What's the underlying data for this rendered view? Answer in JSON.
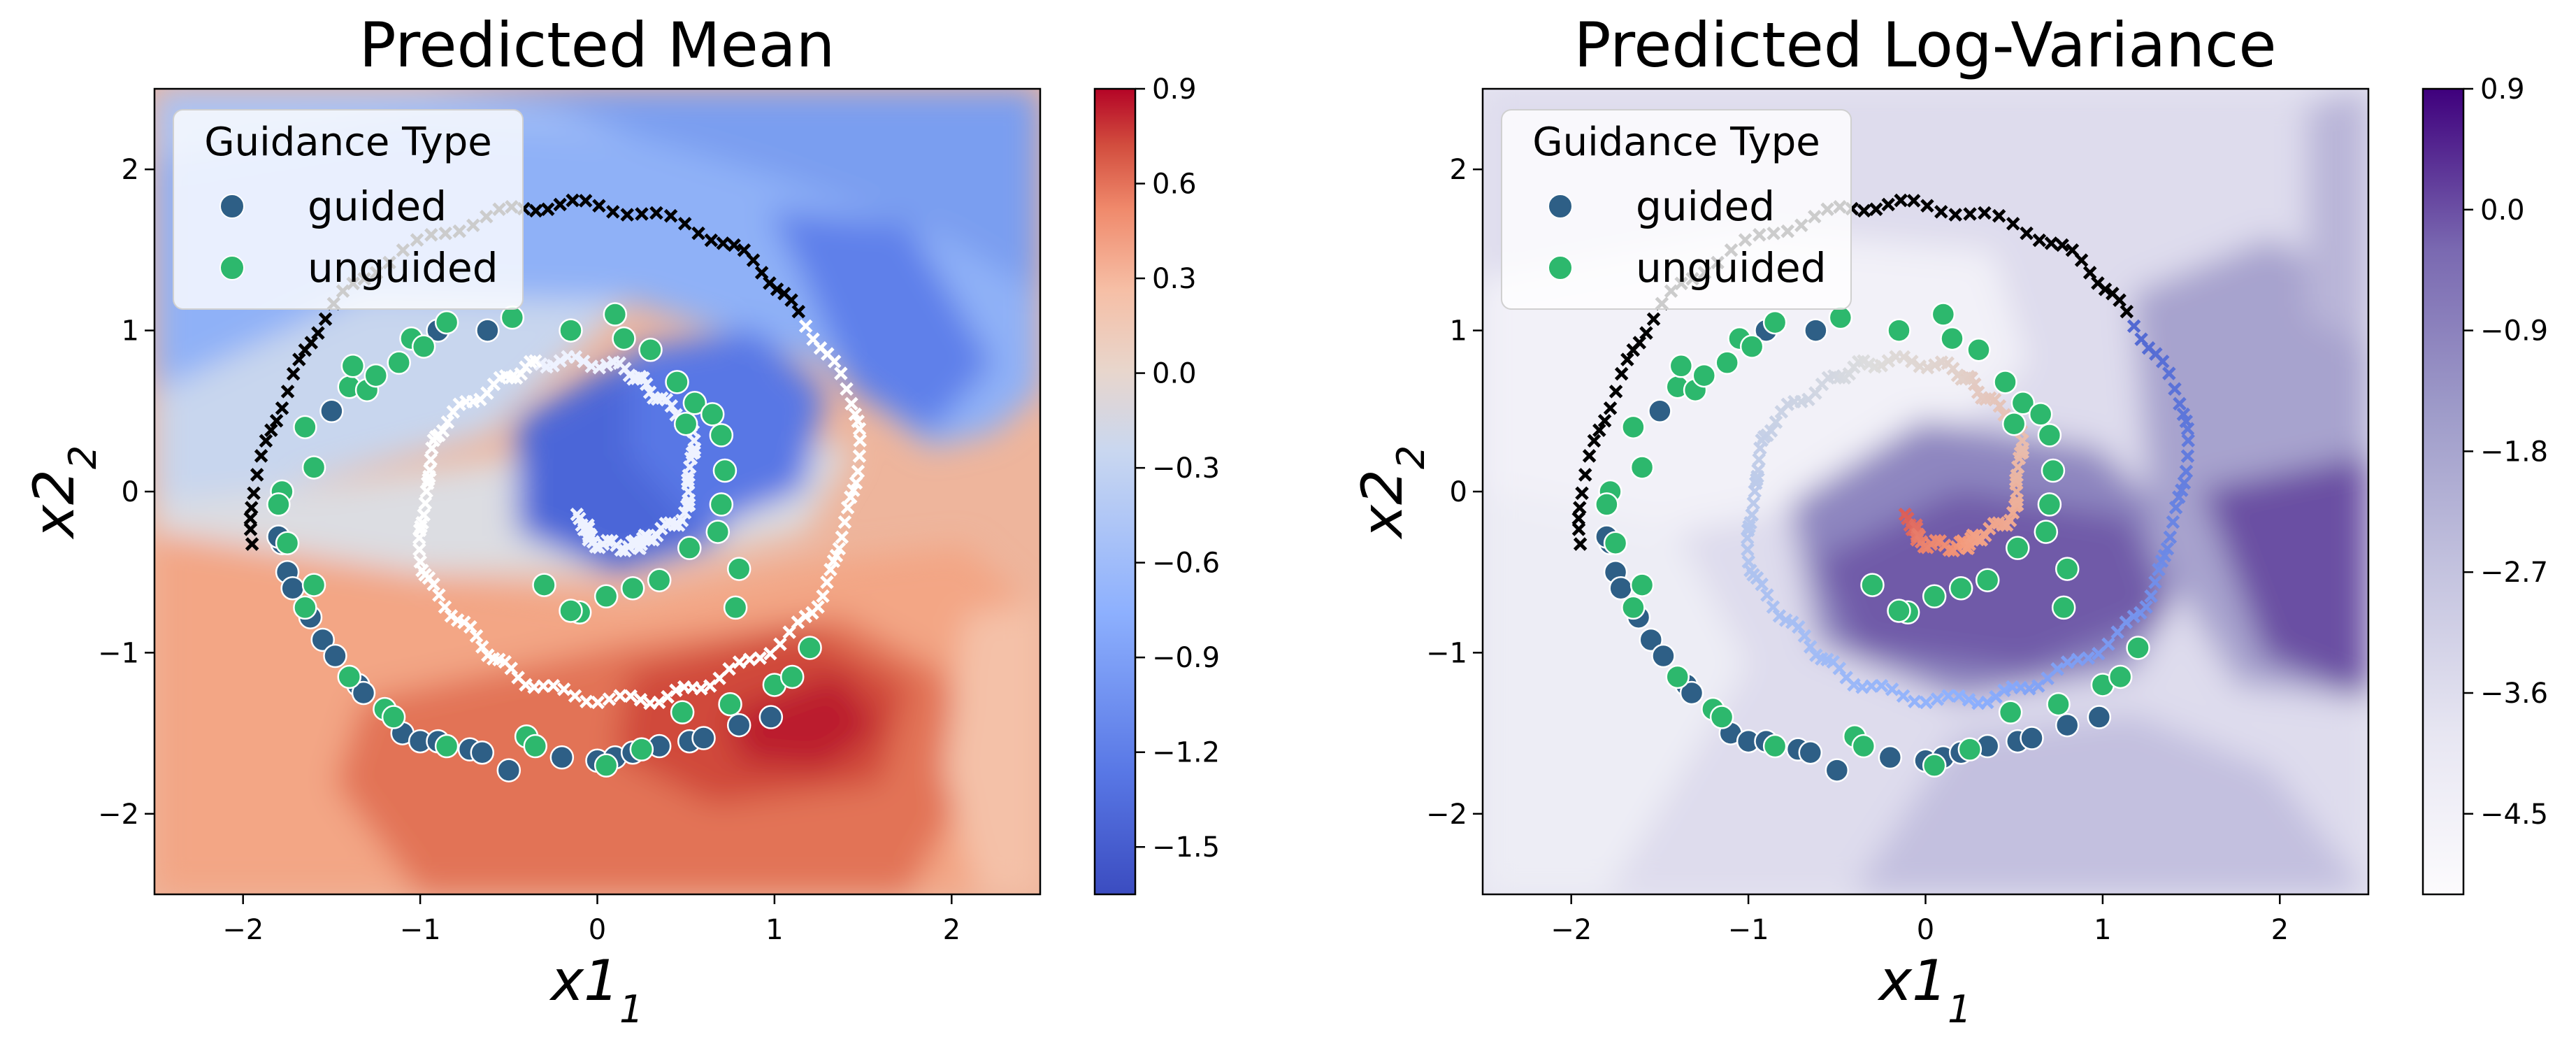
{
  "chart_data": [
    {
      "type": "contour-scatter",
      "title": "Predicted Mean",
      "xlabel": "x1",
      "ylabel": "x2",
      "xlim": [
        -2.5,
        2.5
      ],
      "ylim": [
        -2.5,
        2.5
      ],
      "xticks": [
        -2,
        -1,
        0,
        1,
        2
      ],
      "yticks": [
        -2,
        -1,
        0,
        1,
        2
      ],
      "colormap": "coolwarm",
      "colorbar": {
        "range": [
          -1.65,
          0.9
        ],
        "ticks": [
          0.9,
          0.6,
          0.3,
          0.0,
          -0.3,
          -0.6,
          -0.9,
          -1.2,
          -1.5
        ],
        "tick_labels": [
          "0.9",
          "0.6",
          "0.3",
          "0.0",
          "−0.3",
          "−0.6",
          "−0.9",
          "−1.2",
          "−1.5"
        ],
        "levels": 18
      },
      "legend": {
        "title": "Guidance Type",
        "location": "top-left",
        "entries": [
          {
            "label": "guided",
            "color": "#2e5f86"
          },
          {
            "label": "unguided",
            "color": "#2db86d"
          }
        ]
      }
    },
    {
      "type": "contour-scatter",
      "title": "Predicted Log-Variance",
      "xlabel": "x1",
      "ylabel": "x2",
      "xlim": [
        -2.5,
        2.5
      ],
      "ylim": [
        -2.5,
        2.5
      ],
      "xticks": [
        -2,
        -1,
        0,
        1,
        2
      ],
      "yticks": [
        -2,
        -1,
        0,
        1,
        2
      ],
      "colormap": "Purples",
      "colorbar": {
        "range": [
          -5.1,
          0.9
        ],
        "ticks": [
          0.9,
          0.0,
          -0.9,
          -1.8,
          -2.7,
          -3.6,
          -4.5
        ],
        "tick_labels": [
          "0.9",
          "0.0",
          "−0.9",
          "−1.8",
          "−2.7",
          "−3.6",
          "−4.5"
        ],
        "levels": 20
      },
      "legend": {
        "title": "Guidance Type",
        "location": "top-left",
        "entries": [
          {
            "label": "guided",
            "color": "#2e5f86"
          },
          {
            "label": "unguided",
            "color": "#2db86d"
          }
        ]
      }
    }
  ],
  "points": {
    "guided": [
      [
        -1.78,
        -0.32
      ],
      [
        -1.75,
        -0.5
      ],
      [
        -1.72,
        -0.6
      ],
      [
        -1.62,
        -0.78
      ],
      [
        -1.55,
        -0.92
      ],
      [
        -1.48,
        -1.02
      ],
      [
        -1.35,
        -1.2
      ],
      [
        -1.32,
        -1.25
      ],
      [
        -1.1,
        -1.5
      ],
      [
        -1.0,
        -1.55
      ],
      [
        -0.9,
        -1.55
      ],
      [
        -0.72,
        -1.6
      ],
      [
        -0.65,
        -1.62
      ],
      [
        -0.5,
        -1.73
      ],
      [
        -0.2,
        -1.65
      ],
      [
        0.0,
        -1.67
      ],
      [
        0.1,
        -1.65
      ],
      [
        0.2,
        -1.62
      ],
      [
        0.35,
        -1.58
      ],
      [
        0.52,
        -1.55
      ],
      [
        0.6,
        -1.53
      ],
      [
        0.8,
        -1.45
      ],
      [
        0.98,
        -1.4
      ],
      [
        -1.8,
        -0.28
      ],
      [
        -1.5,
        0.5
      ],
      [
        -0.9,
        1.0
      ],
      [
        -0.62,
        1.0
      ]
    ],
    "unguided": [
      [
        -1.78,
        0.0
      ],
      [
        -1.8,
        -0.08
      ],
      [
        -1.75,
        -0.32
      ],
      [
        -1.6,
        -0.58
      ],
      [
        -1.65,
        -0.72
      ],
      [
        -1.4,
        -1.15
      ],
      [
        -1.2,
        -1.35
      ],
      [
        -1.15,
        -1.4
      ],
      [
        -0.85,
        -1.58
      ],
      [
        -0.4,
        -1.52
      ],
      [
        -0.35,
        -1.58
      ],
      [
        0.05,
        -1.7
      ],
      [
        0.25,
        -1.6
      ],
      [
        0.48,
        -1.37
      ],
      [
        0.75,
        -1.32
      ],
      [
        1.0,
        -1.2
      ],
      [
        1.1,
        -1.15
      ],
      [
        1.2,
        -0.97
      ],
      [
        -1.65,
        0.4
      ],
      [
        -1.6,
        0.15
      ],
      [
        -1.4,
        0.65
      ],
      [
        -1.38,
        0.78
      ],
      [
        -1.3,
        0.63
      ],
      [
        -1.25,
        0.72
      ],
      [
        -1.12,
        0.8
      ],
      [
        -1.05,
        0.95
      ],
      [
        -0.98,
        0.9
      ],
      [
        -0.85,
        1.05
      ],
      [
        -0.48,
        1.08
      ],
      [
        -0.15,
        1.0
      ],
      [
        0.1,
        1.1
      ],
      [
        0.15,
        0.95
      ],
      [
        0.3,
        0.88
      ],
      [
        0.45,
        0.68
      ],
      [
        0.5,
        0.42
      ],
      [
        0.55,
        0.55
      ],
      [
        0.65,
        0.48
      ],
      [
        0.7,
        0.35
      ],
      [
        0.72,
        0.13
      ],
      [
        0.7,
        -0.08
      ],
      [
        0.68,
        -0.25
      ],
      [
        0.52,
        -0.35
      ],
      [
        0.35,
        -0.55
      ],
      [
        0.2,
        -0.6
      ],
      [
        0.05,
        -0.65
      ],
      [
        -0.1,
        -0.75
      ],
      [
        -0.3,
        -0.58
      ],
      [
        0.8,
        -0.48
      ],
      [
        0.78,
        -0.72
      ],
      [
        -0.15,
        -0.74
      ]
    ]
  }
}
